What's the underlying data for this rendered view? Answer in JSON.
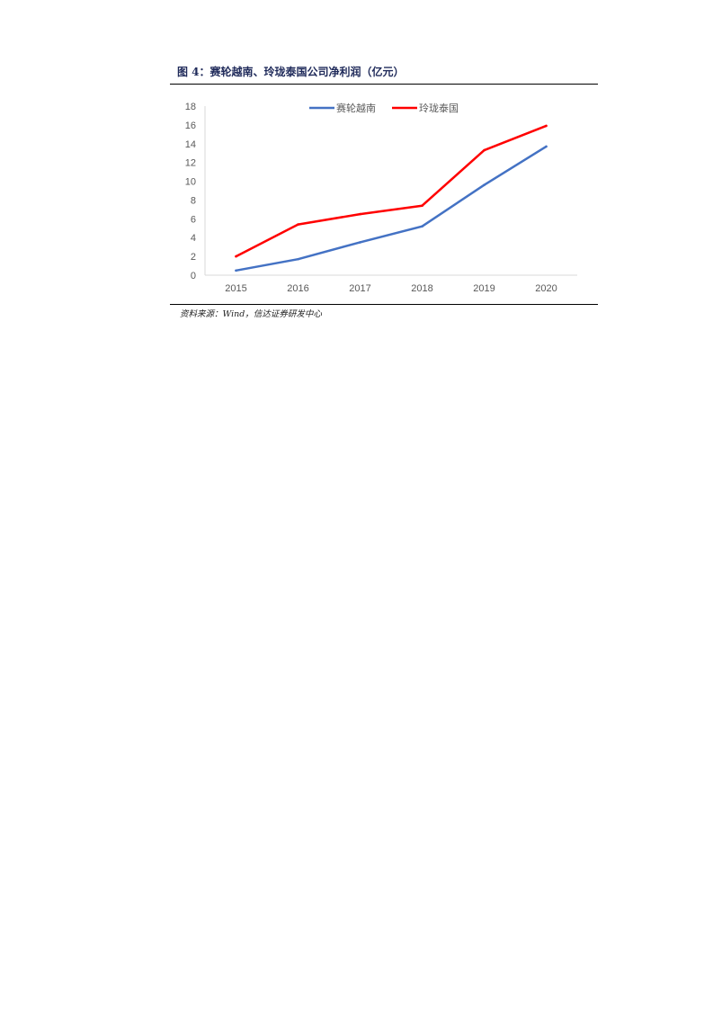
{
  "figure": {
    "title": "图 4：赛轮越南、玲珑泰国公司净利润（亿元）",
    "source": "资料来源：Wind，信达证券研发中心"
  },
  "chart_data": {
    "type": "line",
    "title": "",
    "xlabel": "",
    "ylabel": "",
    "categories": [
      "2015",
      "2016",
      "2017",
      "2018",
      "2019",
      "2020"
    ],
    "ylim": [
      0,
      18
    ],
    "yticks": [
      0,
      2,
      4,
      6,
      8,
      10,
      12,
      14,
      16,
      18
    ],
    "grid": false,
    "legend": "top-center",
    "series": [
      {
        "name": "赛轮越南",
        "color": "#4472c4",
        "values": [
          0.5,
          1.7,
          3.5,
          5.2,
          9.6,
          13.7
        ]
      },
      {
        "name": "玲珑泰国",
        "color": "#ff0000",
        "values": [
          2.0,
          5.4,
          6.5,
          7.4,
          13.3,
          15.9
        ]
      }
    ]
  }
}
